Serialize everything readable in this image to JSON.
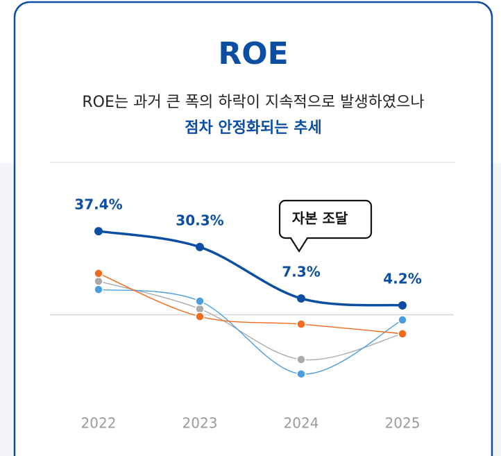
{
  "chart_data": {
    "type": "line",
    "title": "ROE",
    "subtitle": [
      "ROE는 과거 큰 폭의 하락이 지속적으로 발생하였으나",
      "점차 안정화되는 추세"
    ],
    "annotation": "자본 조달",
    "categories": [
      "2022",
      "2023",
      "2024",
      "2025"
    ],
    "ylim": [
      -30,
      40
    ],
    "series": [
      {
        "color": "#aaaaaa",
        "values": [
          15,
          2.6,
          -20,
          -8.5
        ]
      },
      {
        "color": "#4a9ee0",
        "values": [
          11.3,
          6.1,
          -26.5,
          -2.3
        ]
      },
      {
        "color": "#f26a1b",
        "values": [
          18.5,
          -0.8,
          -4.2,
          -8.5
        ]
      },
      {
        "color": "#0b4ea2",
        "values": [
          37.4,
          30.3,
          7.3,
          4.2
        ],
        "value_labels": [
          "37.4%",
          "30.3%",
          "7.3%",
          "4.2%"
        ]
      }
    ]
  }
}
